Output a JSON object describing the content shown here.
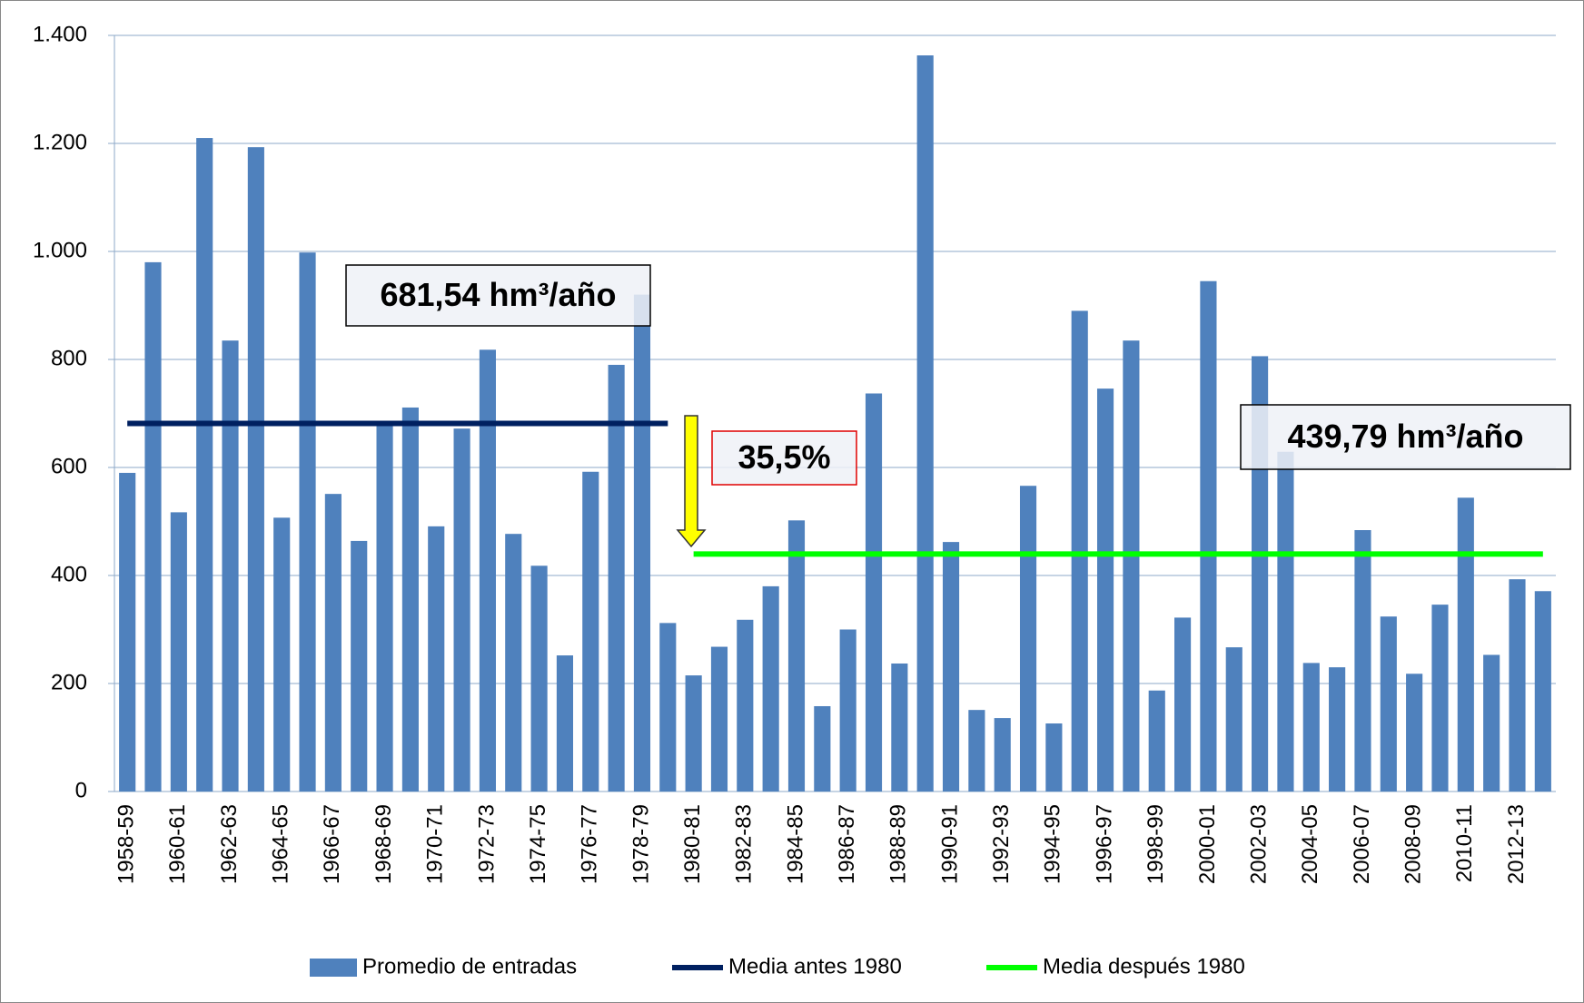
{
  "chart_data": {
    "type": "bar",
    "categories": [
      "1958-59",
      null,
      "1960-61",
      null,
      "1962-63",
      null,
      "1964-65",
      null,
      "1966-67",
      null,
      "1968-69",
      null,
      "1970-71",
      null,
      "1972-73",
      null,
      "1974-75",
      null,
      "1976-77",
      null,
      "1978-79",
      null,
      "1980-81",
      null,
      "1982-83",
      null,
      "1984-85",
      null,
      "1986-87",
      null,
      "1988-89",
      null,
      "1990-91",
      null,
      "1992-93",
      null,
      "1994-95",
      null,
      "1996-97",
      null,
      "1998-99",
      null,
      "2000-01",
      null,
      "2002-03",
      null,
      "2004-05",
      null,
      "2006-07",
      null,
      "2008-09",
      null,
      "2010-11",
      null,
      "2012-13",
      null
    ],
    "series": [
      {
        "name": "Promedio de entradas",
        "type": "bar",
        "color": "#4f81bd",
        "values": [
          590,
          980,
          517,
          1210,
          835,
          1193,
          507,
          998,
          551,
          464,
          680,
          711,
          491,
          672,
          818,
          477,
          418,
          252,
          592,
          790,
          920,
          312,
          215,
          268,
          318,
          380,
          502,
          158,
          300,
          737,
          237,
          1363,
          462,
          151,
          136,
          566,
          126,
          890,
          746,
          835,
          187,
          322,
          945,
          267,
          806,
          629,
          238,
          230,
          484,
          324,
          218,
          346,
          544,
          253,
          393,
          371
        ]
      },
      {
        "name": "Media antes 1980",
        "type": "line",
        "color": "#002060",
        "values": [
          681.54,
          681.54,
          681.54,
          681.54,
          681.54,
          681.54,
          681.54,
          681.54,
          681.54,
          681.54,
          681.54,
          681.54,
          681.54,
          681.54,
          681.54,
          681.54,
          681.54,
          681.54,
          681.54,
          681.54,
          681.54,
          681.54,
          null,
          null,
          null,
          null,
          null,
          null,
          null,
          null,
          null,
          null,
          null,
          null,
          null,
          null,
          null,
          null,
          null,
          null,
          null,
          null,
          null,
          null,
          null,
          null,
          null,
          null,
          null,
          null,
          null,
          null,
          null,
          null,
          null,
          null
        ]
      },
      {
        "name": "Media después 1980",
        "type": "line",
        "color": "#00ff00",
        "values": [
          null,
          null,
          null,
          null,
          null,
          null,
          null,
          null,
          null,
          null,
          null,
          null,
          null,
          null,
          null,
          null,
          null,
          null,
          null,
          null,
          null,
          null,
          439.79,
          439.79,
          439.79,
          439.79,
          439.79,
          439.79,
          439.79,
          439.79,
          439.79,
          439.79,
          439.79,
          439.79,
          439.79,
          439.79,
          439.79,
          439.79,
          439.79,
          439.79,
          439.79,
          439.79,
          439.79,
          439.79,
          439.79,
          439.79,
          439.79,
          439.79,
          439.79,
          439.79,
          439.79,
          439.79,
          439.79,
          439.79,
          439.79,
          439.79
        ]
      }
    ],
    "ylim": [
      0,
      1400
    ],
    "yticks": [
      0,
      200,
      400,
      600,
      800,
      {
        "value": 1000,
        "label": "1.000"
      },
      {
        "value": 1200,
        "label": "1.200"
      },
      {
        "value": 1400,
        "label": "1.400"
      }
    ],
    "grid": true,
    "legend": "bottom",
    "annotations": [
      "681,54 hm³/año",
      "35,5%",
      "439,79 hm³/año"
    ]
  }
}
